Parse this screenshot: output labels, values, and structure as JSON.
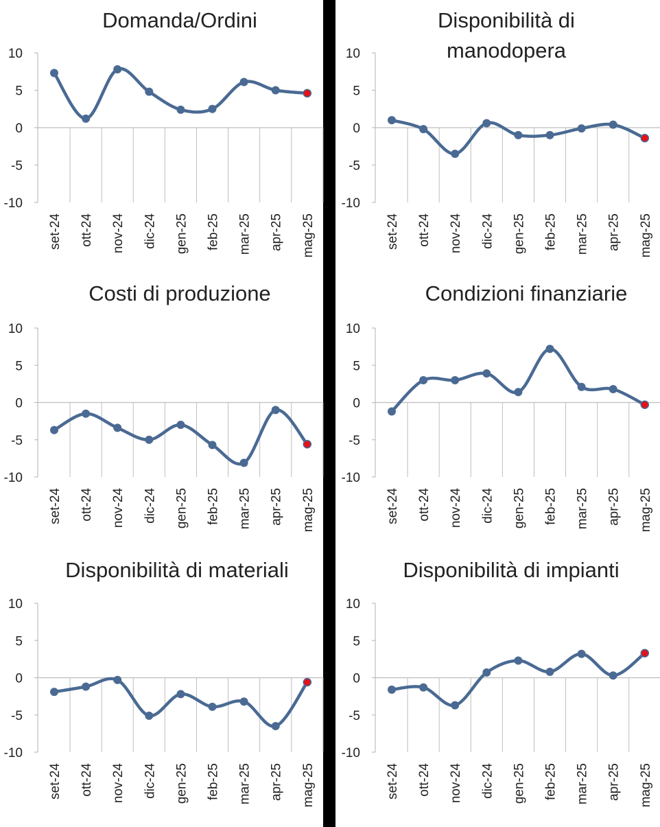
{
  "colors": {
    "line": "#4a6a93",
    "marker": "#4a6a93",
    "last_marker": "#e3121b",
    "axis": "#bdbdbd",
    "divider": "#000000"
  },
  "chart_data": [
    {
      "type": "line",
      "title": "Domanda/Ordini",
      "categories": [
        "set-24",
        "ott-24",
        "nov-24",
        "dic-24",
        "gen-25",
        "feb-25",
        "mar-25",
        "apr-25",
        "mag-25"
      ],
      "values": [
        7.3,
        1.2,
        7.8,
        4.8,
        2.4,
        2.5,
        6.1,
        5.0,
        4.6
      ],
      "yticks": [
        "10",
        "5",
        "0",
        "-5",
        "-10"
      ],
      "ylim": [
        -10,
        10
      ],
      "highlight_last": true
    },
    {
      "type": "line",
      "title": "Disponibilità di manodopera",
      "title_lines": [
        "Disponibilità di",
        "manodopera"
      ],
      "categories": [
        "set-24",
        "ott-24",
        "nov-24",
        "dic-24",
        "gen-25",
        "feb-25",
        "mar-25",
        "apr-25",
        "mag-25"
      ],
      "values": [
        1.0,
        -0.2,
        -3.5,
        0.6,
        -1.0,
        -1.0,
        -0.1,
        0.4,
        -1.4
      ],
      "yticks": [
        "10",
        "5",
        "0",
        "-5",
        "-10"
      ],
      "ylim": [
        -10,
        10
      ],
      "highlight_last": true
    },
    {
      "type": "line",
      "title": "Costi di produzione",
      "categories": [
        "set-24",
        "ott-24",
        "nov-24",
        "dic-24",
        "gen-25",
        "feb-25",
        "mar-25",
        "apr-25",
        "mag-25"
      ],
      "values": [
        -3.7,
        -1.5,
        -3.4,
        -5.0,
        -3.0,
        -5.7,
        -8.1,
        -1.0,
        -5.6
      ],
      "yticks": [
        "10",
        "5",
        "0",
        "-5",
        "-10"
      ],
      "ylim": [
        -10,
        10
      ],
      "highlight_last": true
    },
    {
      "type": "line",
      "title": "Condizioni finanziarie",
      "categories": [
        "set-24",
        "ott-24",
        "nov-24",
        "dic-24",
        "gen-25",
        "feb-25",
        "mar-25",
        "apr-25",
        "mag-25"
      ],
      "values": [
        -1.2,
        3.0,
        3.0,
        3.9,
        1.4,
        7.2,
        2.1,
        1.8,
        -0.3
      ],
      "yticks": [
        "10",
        "5",
        "0",
        "-5",
        "-10"
      ],
      "ylim": [
        -10,
        10
      ],
      "highlight_last": true
    },
    {
      "type": "line",
      "title": "Disponibilità di materiali",
      "categories": [
        "set-24",
        "ott-24",
        "nov-24",
        "dic-24",
        "gen-25",
        "feb-25",
        "mar-25",
        "apr-25",
        "mag-25"
      ],
      "values": [
        -1.9,
        -1.2,
        -0.3,
        -5.1,
        -2.2,
        -3.9,
        -3.2,
        -6.5,
        -0.6
      ],
      "yticks": [
        "10",
        "5",
        "0",
        "-5",
        "-10"
      ],
      "ylim": [
        -10,
        10
      ],
      "highlight_last": true
    },
    {
      "type": "line",
      "title": "Disponibilità di impianti",
      "categories": [
        "set-24",
        "ott-24",
        "nov-24",
        "dic-24",
        "gen-25",
        "feb-25",
        "mar-25",
        "apr-25",
        "mag-25"
      ],
      "values": [
        -1.6,
        -1.3,
        -3.7,
        0.7,
        2.3,
        0.8,
        3.2,
        0.3,
        3.3
      ],
      "yticks": [
        "10",
        "5",
        "0",
        "-5",
        "-10"
      ],
      "ylim": [
        -10,
        10
      ],
      "highlight_last": true
    }
  ]
}
